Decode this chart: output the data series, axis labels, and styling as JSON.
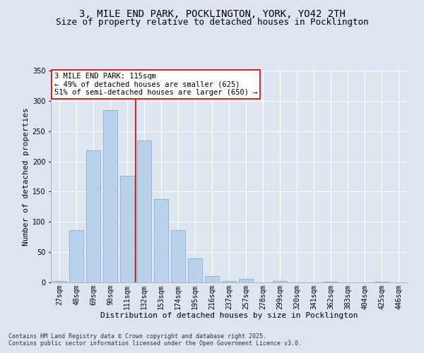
{
  "title_line1": "3, MILE END PARK, POCKLINGTON, YORK, YO42 2TH",
  "title_line2": "Size of property relative to detached houses in Pocklington",
  "xlabel": "Distribution of detached houses by size in Pocklington",
  "ylabel": "Number of detached properties",
  "categories": [
    "27sqm",
    "48sqm",
    "69sqm",
    "90sqm",
    "111sqm",
    "132sqm",
    "153sqm",
    "174sqm",
    "195sqm",
    "216sqm",
    "237sqm",
    "257sqm",
    "278sqm",
    "299sqm",
    "320sqm",
    "341sqm",
    "362sqm",
    "383sqm",
    "404sqm",
    "425sqm",
    "446sqm"
  ],
  "values": [
    2,
    86,
    218,
    285,
    176,
    234,
    138,
    86,
    40,
    11,
    2,
    6,
    0,
    2,
    0,
    0,
    1,
    0,
    0,
    1,
    0
  ],
  "bar_color": "#b8d0e8",
  "bar_edge_color": "#7aafd4",
  "ylim": [
    0,
    350
  ],
  "yticks": [
    0,
    50,
    100,
    150,
    200,
    250,
    300,
    350
  ],
  "vline_color": "#cc0000",
  "annotation_text": "3 MILE END PARK: 115sqm\n← 49% of detached houses are smaller (625)\n51% of semi-detached houses are larger (650) →",
  "annotation_box_color": "#ffffff",
  "annotation_box_edge": "#cc0000",
  "background_color": "#dde6f0",
  "plot_bg_color": "#dde6f0",
  "footer_line1": "Contains HM Land Registry data © Crown copyright and database right 2025.",
  "footer_line2": "Contains public sector information licensed under the Open Government Licence v3.0.",
  "title_fontsize": 10,
  "subtitle_fontsize": 9,
  "xlabel_fontsize": 8,
  "ylabel_fontsize": 8,
  "tick_fontsize": 7,
  "annotation_fontsize": 7.5,
  "footer_fontsize": 6
}
